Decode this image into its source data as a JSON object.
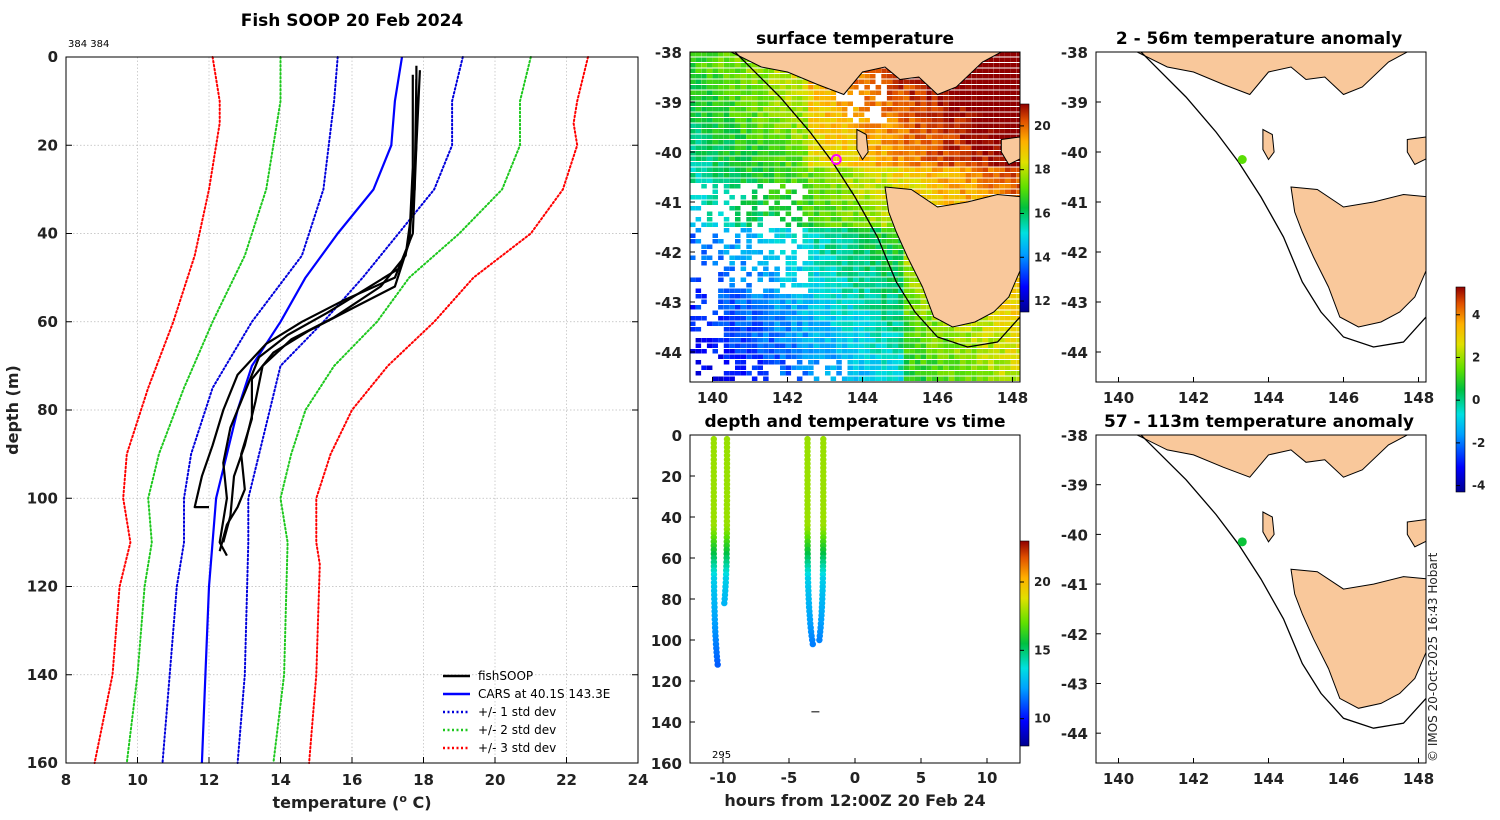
{
  "chart_data": [
    {
      "id": "profile",
      "type": "line",
      "title": "Fish SOOP 20 Feb 2024",
      "corner_note": "384 384",
      "xlabel": "temperature (",
      "xlabel_sup": "o",
      "xlabel_end": " C)",
      "ylabel": "depth (m)",
      "xlim": [
        8,
        24
      ],
      "ylim": [
        0,
        160
      ],
      "xticks": [
        "8",
        "10",
        "12",
        "14",
        "16",
        "18",
        "20",
        "22",
        "24"
      ],
      "yticks": [
        "0",
        "20",
        "40",
        "60",
        "80",
        "100",
        "120",
        "140",
        "160"
      ],
      "series": [
        {
          "name": "+/- 3 std dev",
          "color": "#ff0000",
          "style": "dotted",
          "sides": [
            [
              [
                12.1,
                0
              ],
              [
                12.3,
                10
              ],
              [
                12.3,
                15
              ],
              [
                12.0,
                30
              ],
              [
                11.6,
                45
              ],
              [
                11.0,
                60
              ],
              [
                10.3,
                75
              ],
              [
                9.7,
                90
              ],
              [
                9.6,
                100
              ],
              [
                9.8,
                110
              ],
              [
                9.5,
                120
              ],
              [
                9.3,
                140
              ],
              [
                8.8,
                160
              ]
            ],
            [
              [
                22.6,
                0
              ],
              [
                22.3,
                10
              ],
              [
                22.2,
                15
              ],
              [
                22.3,
                20
              ],
              [
                21.9,
                30
              ],
              [
                21.0,
                40
              ],
              [
                19.4,
                50
              ],
              [
                18.3,
                60
              ],
              [
                17.0,
                70
              ],
              [
                16.0,
                80
              ],
              [
                15.4,
                90
              ],
              [
                15.0,
                100
              ],
              [
                15.0,
                110
              ],
              [
                15.1,
                115
              ],
              [
                15.0,
                140
              ],
              [
                14.8,
                160
              ]
            ]
          ]
        },
        {
          "name": "+/- 2 std dev",
          "color": "#1ec81e",
          "style": "dotted",
          "sides": [
            [
              [
                14.0,
                0
              ],
              [
                14.0,
                10
              ],
              [
                13.6,
                30
              ],
              [
                13.0,
                45
              ],
              [
                12.1,
                60
              ],
              [
                11.3,
                75
              ],
              [
                10.6,
                90
              ],
              [
                10.3,
                100
              ],
              [
                10.4,
                110
              ],
              [
                10.2,
                120
              ],
              [
                10.0,
                140
              ],
              [
                9.7,
                160
              ]
            ],
            [
              [
                21.0,
                0
              ],
              [
                20.7,
                10
              ],
              [
                20.7,
                20
              ],
              [
                20.2,
                30
              ],
              [
                19.0,
                40
              ],
              [
                17.6,
                50
              ],
              [
                16.7,
                60
              ],
              [
                15.5,
                70
              ],
              [
                14.7,
                80
              ],
              [
                14.3,
                90
              ],
              [
                14.0,
                100
              ],
              [
                14.2,
                110
              ],
              [
                14.1,
                140
              ],
              [
                13.8,
                160
              ]
            ]
          ]
        },
        {
          "name": "+/- 1 std dev",
          "color": "#0000dc",
          "style": "dotted",
          "sides": [
            [
              [
                15.6,
                0
              ],
              [
                15.5,
                10
              ],
              [
                15.2,
                30
              ],
              [
                14.6,
                45
              ],
              [
                13.2,
                60
              ],
              [
                12.1,
                75
              ],
              [
                11.5,
                90
              ],
              [
                11.3,
                100
              ],
              [
                11.3,
                110
              ],
              [
                11.1,
                120
              ],
              [
                10.9,
                140
              ],
              [
                10.7,
                160
              ]
            ],
            [
              [
                19.1,
                0
              ],
              [
                18.8,
                10
              ],
              [
                18.8,
                20
              ],
              [
                18.3,
                30
              ],
              [
                17.3,
                40
              ],
              [
                16.3,
                50
              ],
              [
                15.2,
                60
              ],
              [
                14.0,
                70
              ],
              [
                13.7,
                80
              ],
              [
                13.4,
                90
              ],
              [
                13.1,
                100
              ],
              [
                13.1,
                110
              ],
              [
                13.0,
                140
              ],
              [
                12.8,
                160
              ]
            ]
          ]
        },
        {
          "name": "CARS at 40.1S 143.3E",
          "color": "#0000ff",
          "style": "solid",
          "sides": [
            [
              [
                17.4,
                0
              ],
              [
                17.2,
                10
              ],
              [
                17.1,
                20
              ],
              [
                16.6,
                30
              ],
              [
                15.6,
                40
              ],
              [
                14.7,
                50
              ],
              [
                14.0,
                60
              ],
              [
                13.2,
                70
              ],
              [
                12.8,
                80
              ],
              [
                12.5,
                90
              ],
              [
                12.2,
                100
              ],
              [
                12.0,
                120
              ],
              [
                11.9,
                140
              ],
              [
                11.8,
                160
              ]
            ]
          ]
        },
        {
          "name": "fishSOOP",
          "color": "#000000",
          "style": "solid",
          "sides": [
            [
              [
                17.8,
                2
              ],
              [
                17.8,
                20
              ],
              [
                17.7,
                40
              ],
              [
                17.2,
                50
              ],
              [
                15.8,
                55
              ],
              [
                14.6,
                60
              ],
              [
                13.6,
                65
              ],
              [
                12.8,
                72
              ],
              [
                12.4,
                80
              ],
              [
                12.1,
                88
              ],
              [
                11.8,
                95
              ],
              [
                11.6,
                102
              ],
              [
                12.0,
                102
              ]
            ],
            [
              [
                17.9,
                3
              ],
              [
                17.8,
                20
              ],
              [
                17.6,
                42
              ],
              [
                17.3,
                48
              ],
              [
                16.3,
                53
              ],
              [
                15.3,
                58
              ],
              [
                14.2,
                63
              ],
              [
                13.4,
                68
              ],
              [
                13.0,
                76
              ],
              [
                12.6,
                84
              ],
              [
                12.4,
                92
              ],
              [
                12.5,
                100
              ],
              [
                12.3,
                110
              ],
              [
                12.5,
                113
              ]
            ],
            [
              [
                17.7,
                4
              ],
              [
                17.7,
                25
              ],
              [
                17.6,
                42
              ],
              [
                17.2,
                52
              ],
              [
                16.0,
                57
              ],
              [
                14.8,
                62
              ],
              [
                13.8,
                67
              ],
              [
                13.2,
                73
              ],
              [
                13.2,
                82
              ],
              [
                12.9,
                90
              ],
              [
                13.0,
                98
              ],
              [
                12.8,
                102
              ],
              [
                12.5,
                106
              ],
              [
                12.3,
                112
              ]
            ],
            [
              [
                17.8,
                5
              ],
              [
                17.75,
                30
              ],
              [
                17.5,
                45
              ],
              [
                16.8,
                52
              ],
              [
                15.5,
                59
              ],
              [
                14.3,
                64
              ],
              [
                13.5,
                70
              ],
              [
                13.3,
                78
              ],
              [
                13.0,
                88
              ],
              [
                12.7,
                95
              ],
              [
                12.6,
                104
              ],
              [
                12.4,
                110
              ]
            ]
          ]
        }
      ],
      "legend": [
        {
          "label": "fishSOOP",
          "color": "#000000",
          "style": "solid"
        },
        {
          "label": "CARS at 40.1S 143.3E",
          "color": "#0000ff",
          "style": "solid"
        },
        {
          "label": "+/- 1 std dev",
          "color": "#0000dc",
          "style": "dotted"
        },
        {
          "label": "+/- 2 std dev",
          "color": "#1ec81e",
          "style": "dotted"
        },
        {
          "label": "+/- 3 std dev",
          "color": "#ff0000",
          "style": "dotted"
        }
      ]
    },
    {
      "id": "sst",
      "type": "heatmap",
      "title": "surface temperature",
      "xlim": [
        139.4,
        148.2
      ],
      "ylim": [
        -44.6,
        -38
      ],
      "xticks": [
        "140",
        "142",
        "144",
        "146",
        "148"
      ],
      "yticks": [
        "-38",
        "-39",
        "-40",
        "-41",
        "-42",
        "-43",
        "-44"
      ],
      "colorbar": {
        "range": [
          11.5,
          21
        ],
        "ticks": [
          "12",
          "14",
          "16",
          "18",
          "20"
        ]
      },
      "marker": {
        "lon": 143.3,
        "lat": -40.15,
        "color": "#ff00ff"
      }
    },
    {
      "id": "depthtime",
      "type": "scatter",
      "title": "depth and temperature vs time",
      "xlabel": "hours from 12:00Z 20 Feb 24",
      "xlim": [
        -12.5,
        12.5
      ],
      "ylim": [
        0,
        160
      ],
      "xticks": [
        "-10",
        "-5",
        "0",
        "5",
        "10"
      ],
      "yticks": [
        "0",
        "20",
        "40",
        "60",
        "80",
        "100",
        "120",
        "140",
        "160"
      ],
      "colorbar": {
        "range": [
          8,
          23
        ],
        "ticks": [
          "10",
          "15",
          "20"
        ]
      },
      "annotation": "295",
      "casts": [
        {
          "t": -10.7,
          "bottom": 112,
          "bottom_t": -10.4
        },
        {
          "t": -9.7,
          "bottom": 82,
          "bottom_t": -9.9
        },
        {
          "t": -3.6,
          "bottom": 102,
          "bottom_t": -3.2
        },
        {
          "t": -2.4,
          "bottom": 100,
          "bottom_t": -2.7
        }
      ],
      "stray_point": {
        "t": -3.0,
        "depth": 135
      }
    },
    {
      "id": "anom_shallow",
      "type": "heatmap",
      "title": "2 - 56m temperature anomaly",
      "xlim": [
        139.4,
        148.2
      ],
      "ylim": [
        -44.6,
        -38
      ],
      "xticks": [
        "140",
        "142",
        "144",
        "146",
        "148"
      ],
      "yticks": [
        "-38",
        "-39",
        "-40",
        "-41",
        "-42",
        "-43",
        "-44"
      ],
      "point": {
        "lon": 143.3,
        "lat": -40.15,
        "value": 1.4
      }
    },
    {
      "id": "anom_deep",
      "type": "heatmap",
      "title": "57 - 113m temperature anomaly",
      "xlim": [
        139.4,
        148.2
      ],
      "ylim": [
        -44.6,
        -38
      ],
      "xticks": [
        "140",
        "142",
        "144",
        "146",
        "148"
      ],
      "yticks": [
        "-38",
        "-39",
        "-40",
        "-41",
        "-42",
        "-43",
        "-44"
      ],
      "point": {
        "lon": 143.3,
        "lat": -40.15,
        "value": 0.6
      },
      "colorbar": {
        "range": [
          -4.3,
          5.3
        ],
        "ticks": [
          "4",
          "2",
          "0",
          "-2",
          "-4"
        ]
      }
    }
  ],
  "credit": "© IMOS 20-Oct-2025 16:43 Hobart",
  "colors": {
    "land": "#f9c89b",
    "axis": "#000000",
    "grid": "#bbbbbb"
  }
}
